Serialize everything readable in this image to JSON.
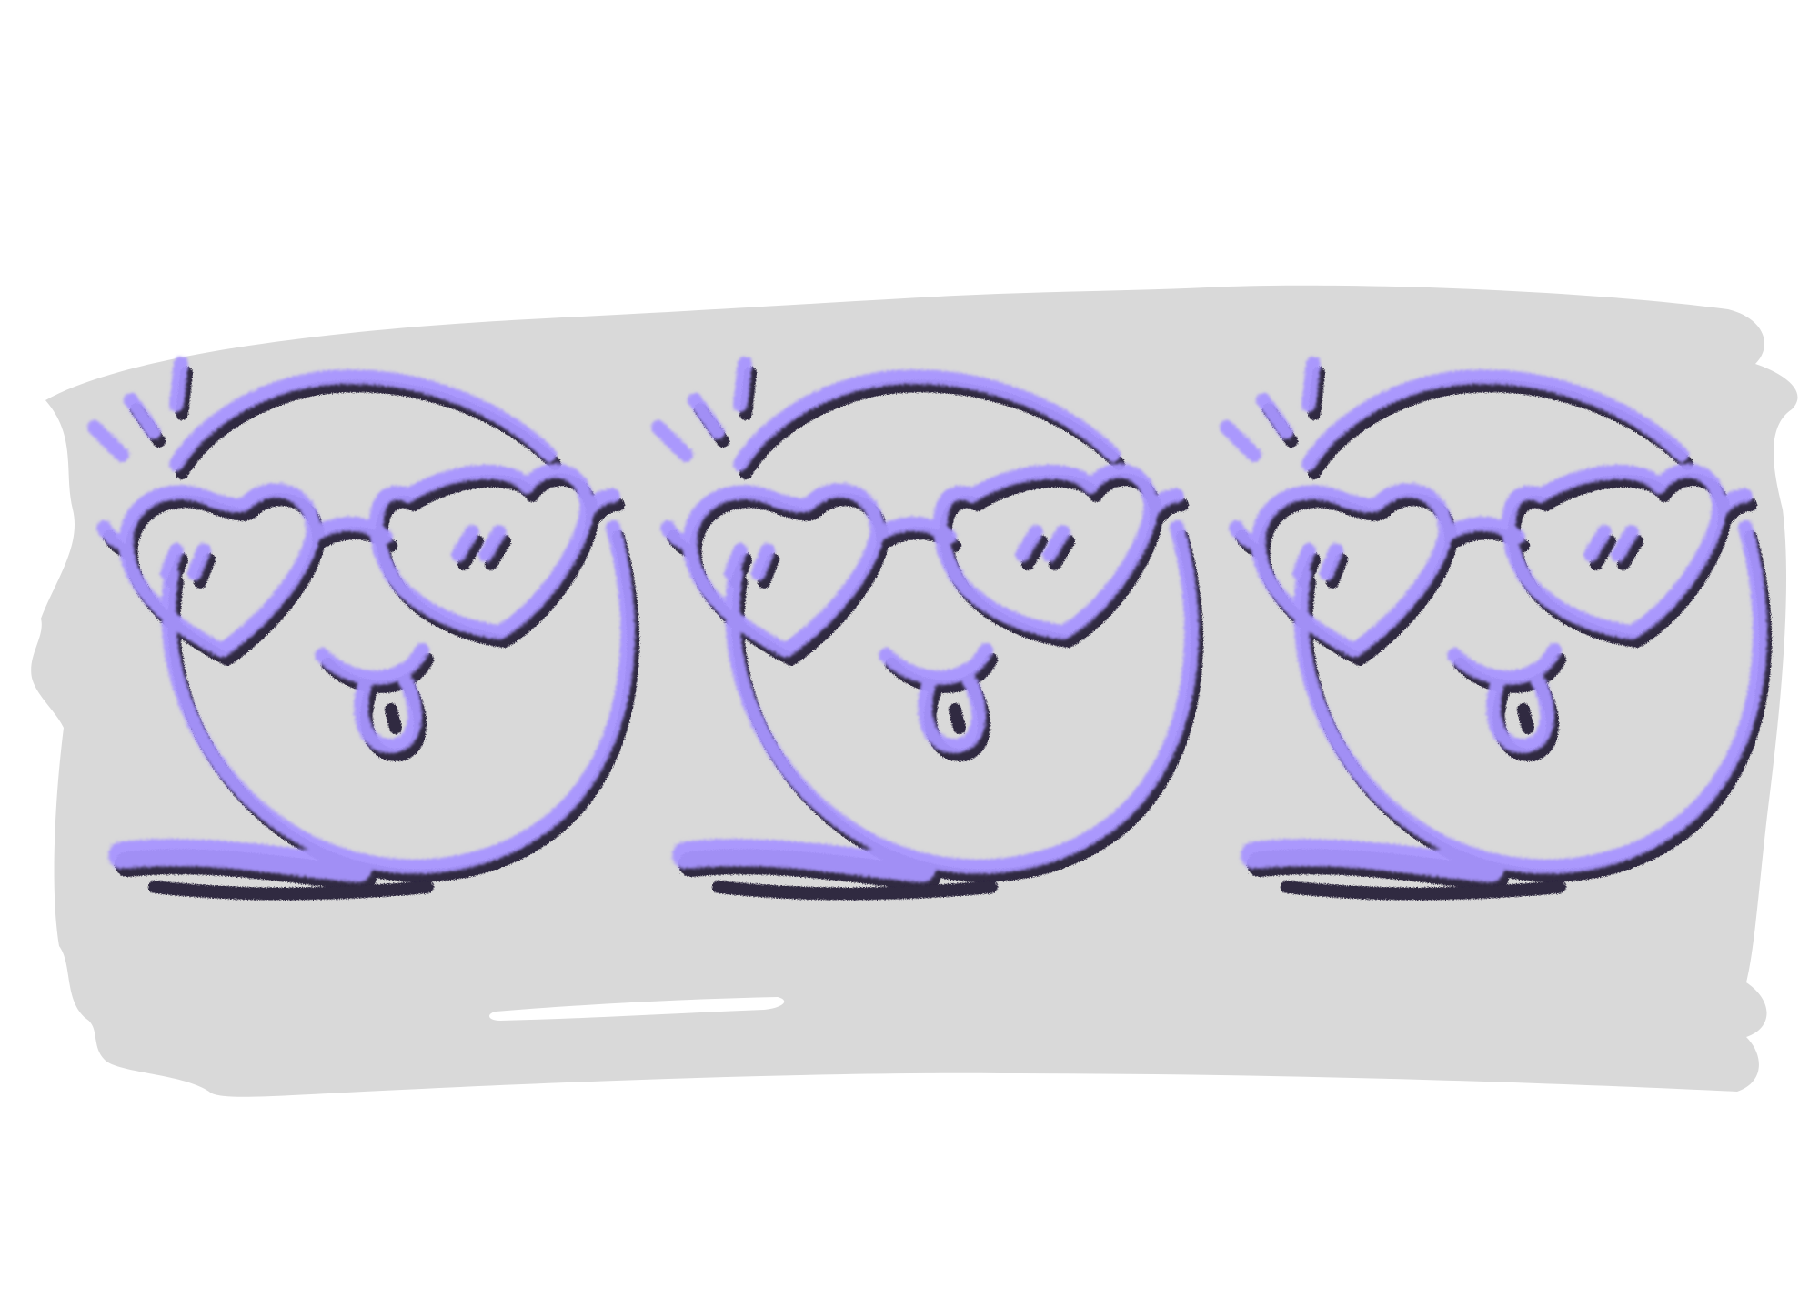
{
  "illustration": {
    "subject": "smiley-face-with-heart-sunglasses",
    "face_count": 3,
    "colors": {
      "background": "#ffffff",
      "brush_stroke": "#d9d9d9",
      "highlight_streak": "#ffffff",
      "ink_dark": "#1c1430",
      "ink_light": "#a895ff"
    }
  }
}
